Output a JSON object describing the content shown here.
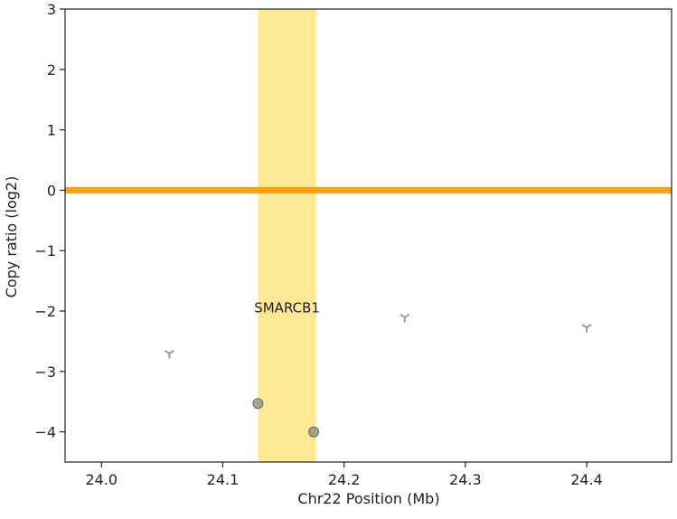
{
  "chart_data": {
    "type": "scatter",
    "xlabel": "Chr22 Position (Mb)",
    "ylabel": "Copy ratio (log2)",
    "xlim": [
      23.97,
      24.47
    ],
    "ylim": [
      -4.5,
      3
    ],
    "xticks": [
      24.0,
      24.1,
      24.2,
      24.3,
      24.4
    ],
    "xtick_labels": [
      "24.0",
      "24.1",
      "24.2",
      "24.3",
      "24.4"
    ],
    "yticks": [
      3,
      2,
      1,
      0,
      -1,
      -2,
      -3,
      -4
    ],
    "ytick_labels": [
      "3",
      "2",
      "1",
      "0",
      "−1",
      "−2",
      "−3",
      "−4"
    ],
    "grid": false,
    "gene_highlight": {
      "label": "SMARCB1",
      "x_start": 24.129,
      "x_end": 24.177,
      "label_y": -1.95,
      "color": "#fde68a"
    },
    "segment": {
      "y": 0,
      "x_start": 23.97,
      "x_end": 24.47,
      "color": "#f59e0b"
    },
    "bins_circle": [
      {
        "x": 24.129,
        "y": -3.53
      },
      {
        "x": 24.175,
        "y": -4.0
      }
    ],
    "bins_tri": [
      {
        "x": 24.056,
        "y": -2.7
      },
      {
        "x": 24.25,
        "y": -2.1
      },
      {
        "x": 24.4,
        "y": -2.27
      }
    ]
  }
}
